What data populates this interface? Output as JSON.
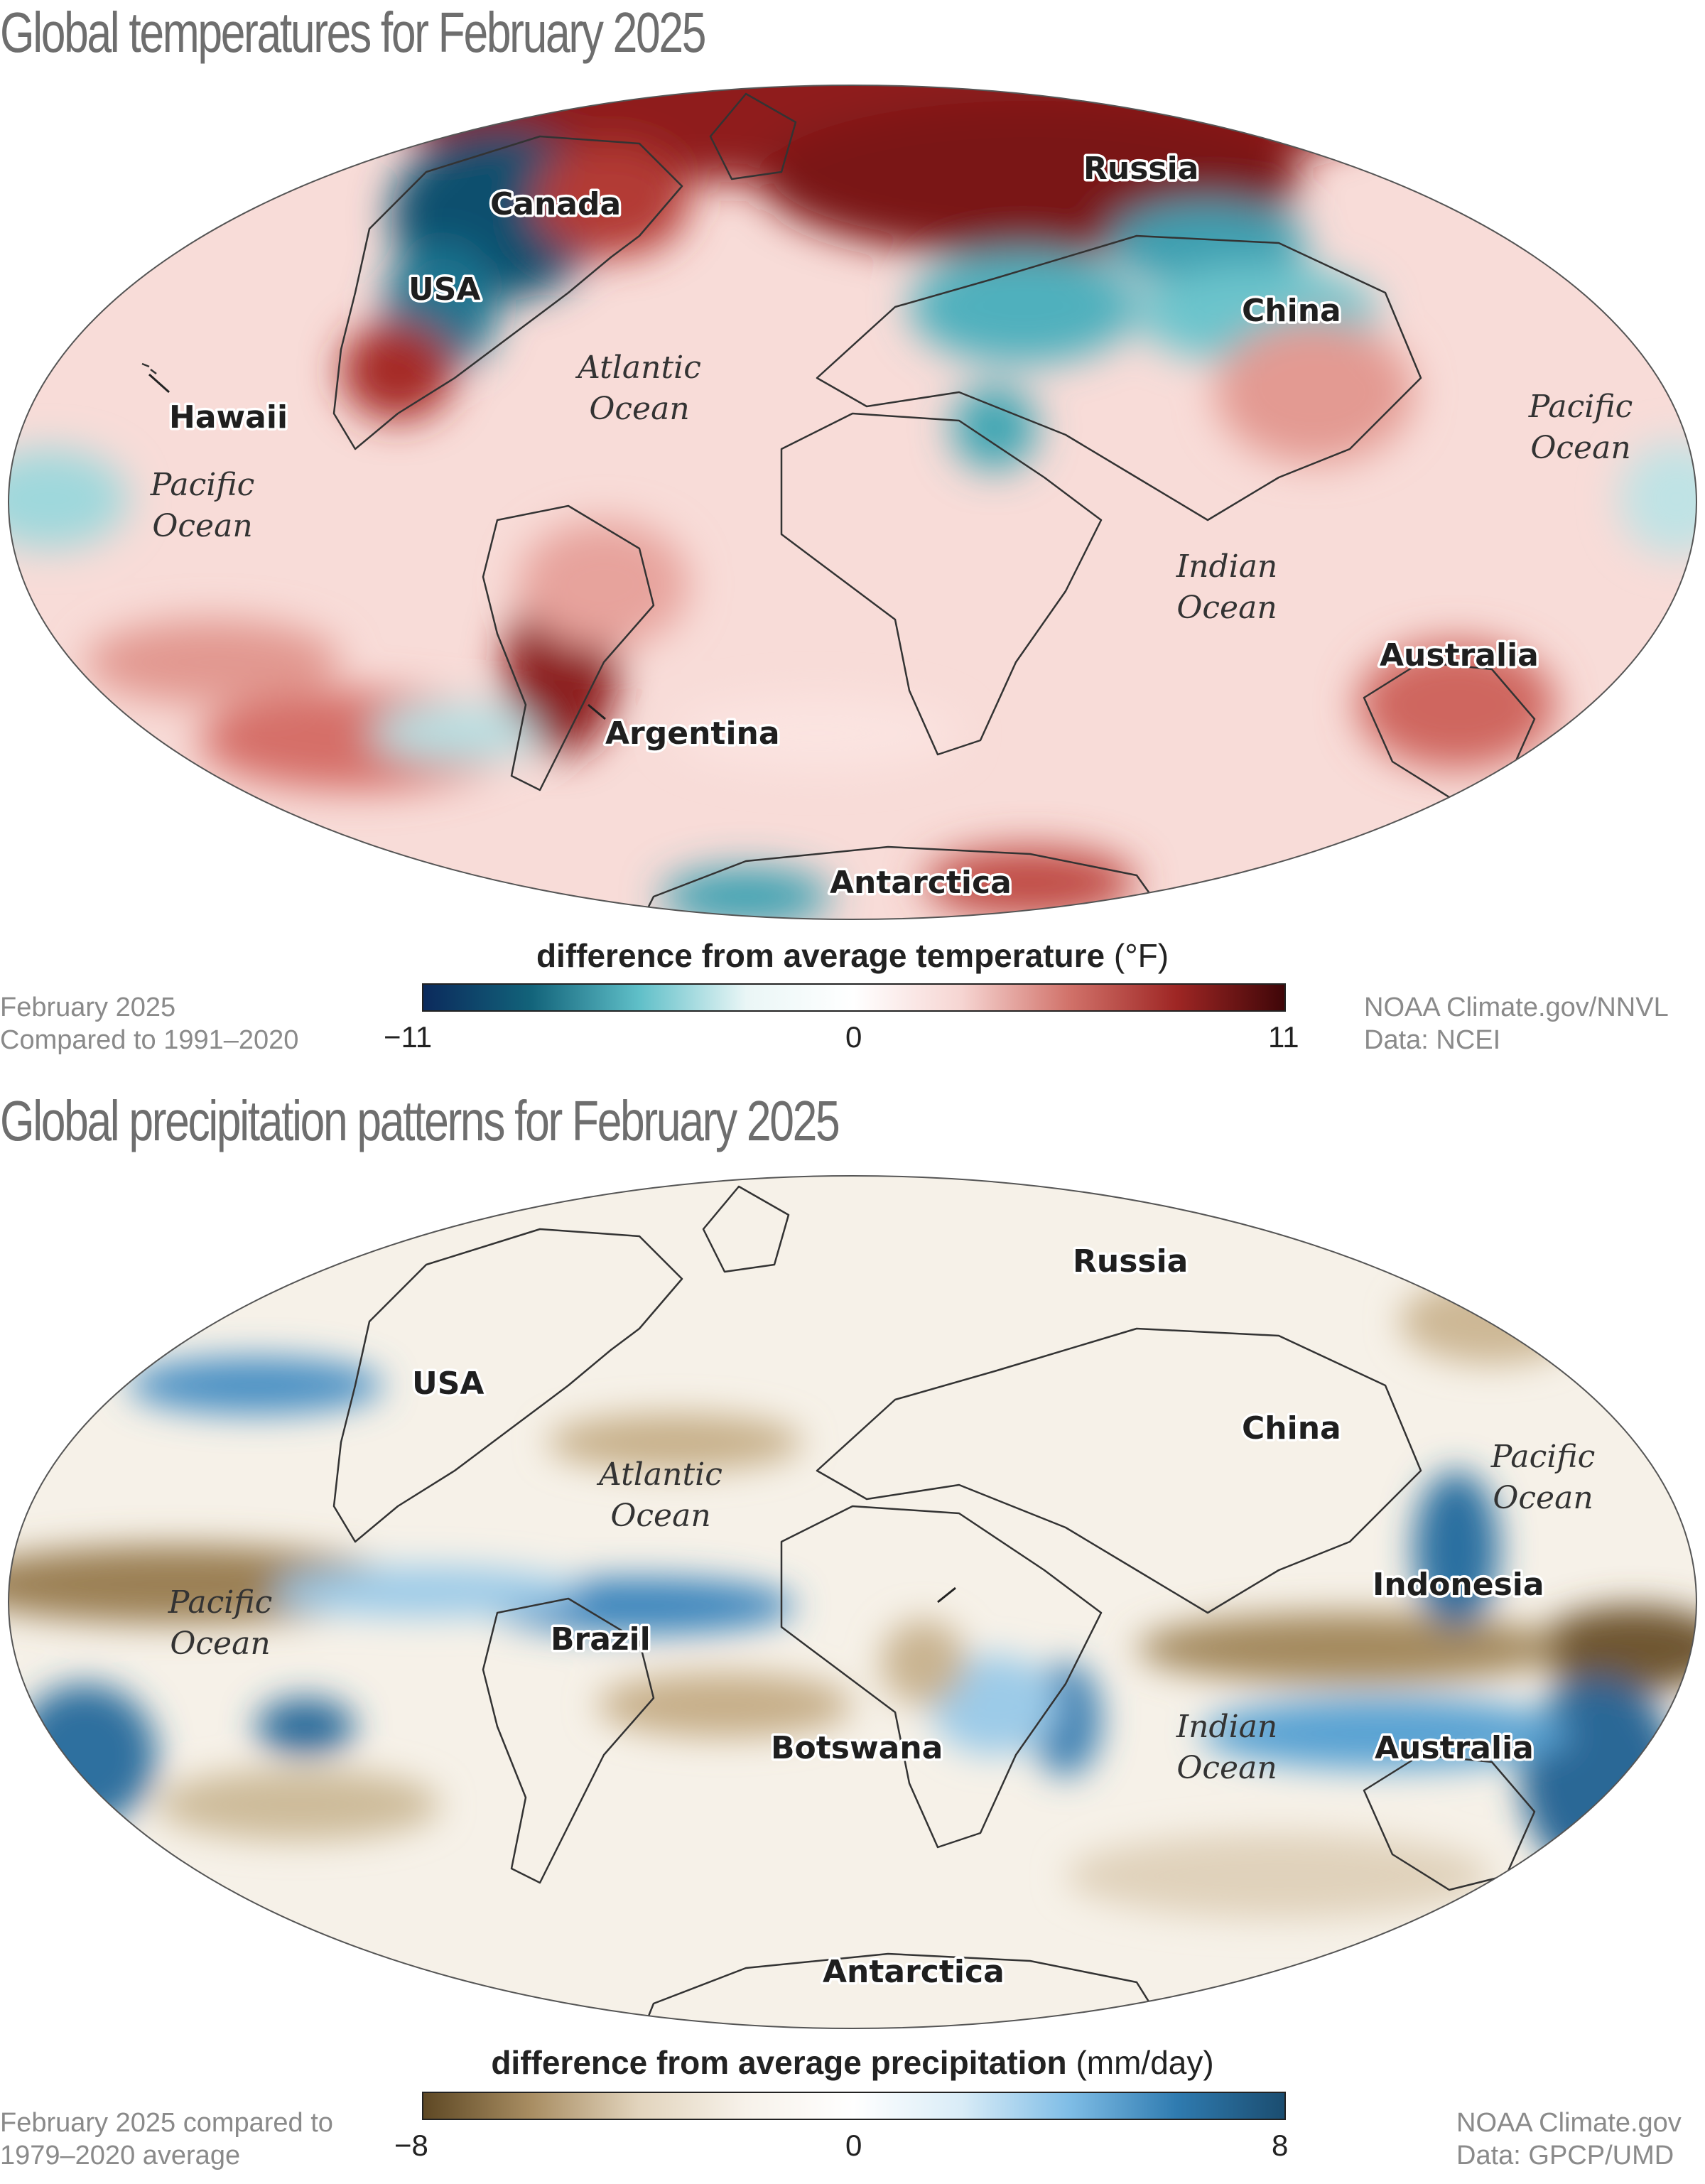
{
  "temperature": {
    "title": "Global temperatures for February 2025",
    "legend_title_bold": "difference from average temperature",
    "legend_unit": "(°F)",
    "legend_min": "−11",
    "legend_mid": "0",
    "legend_max": "11",
    "colors": [
      "#0b2a5c",
      "#12637a",
      "#5fbfc8",
      "#eaf6f6",
      "#ffffff",
      "#f6d5d2",
      "#d1726a",
      "#9e2624",
      "#3f0608"
    ],
    "caption_left": [
      "February 2025",
      "Compared to 1991–2020"
    ],
    "caption_right": [
      "NOAA Climate.gov/NNVL",
      "Data: NCEI"
    ],
    "labels": [
      "Canada",
      "Russia",
      "USA",
      "China",
      "Hawaii",
      "Australia",
      "Argentina",
      "Antarctica"
    ],
    "oceans": [
      [
        "Atlantic",
        "Ocean"
      ],
      [
        "Pacific",
        "Ocean"
      ],
      [
        "Pacific",
        "Ocean"
      ],
      [
        "Indian",
        "Ocean"
      ]
    ]
  },
  "precipitation": {
    "title": "Global precipitation patterns for February 2025",
    "legend_title_bold": "difference from average precipitation",
    "legend_unit": "(mm/day)",
    "legend_min": "−8",
    "legend_mid": "0",
    "legend_max": "8",
    "colors": [
      "#5e4824",
      "#a88d62",
      "#e2d4bd",
      "#f7f2ea",
      "#ffffff",
      "#d9ecf7",
      "#7fbde6",
      "#2f7bb0",
      "#1b4d70"
    ],
    "caption_left": [
      "February 2025 compared to",
      "1979–2020 average"
    ],
    "caption_right": [
      "NOAA Climate.gov",
      "Data: GPCP/UMD"
    ],
    "labels": [
      "Russia",
      "USA",
      "China",
      "Indonesia",
      "Brazil",
      "Botswana",
      "Australia",
      "Antarctica"
    ],
    "oceans": [
      [
        "Atlantic",
        "Ocean"
      ],
      [
        "Pacific",
        "Ocean"
      ],
      [
        "Pacific",
        "Ocean"
      ],
      [
        "Indian",
        "Ocean"
      ]
    ]
  }
}
